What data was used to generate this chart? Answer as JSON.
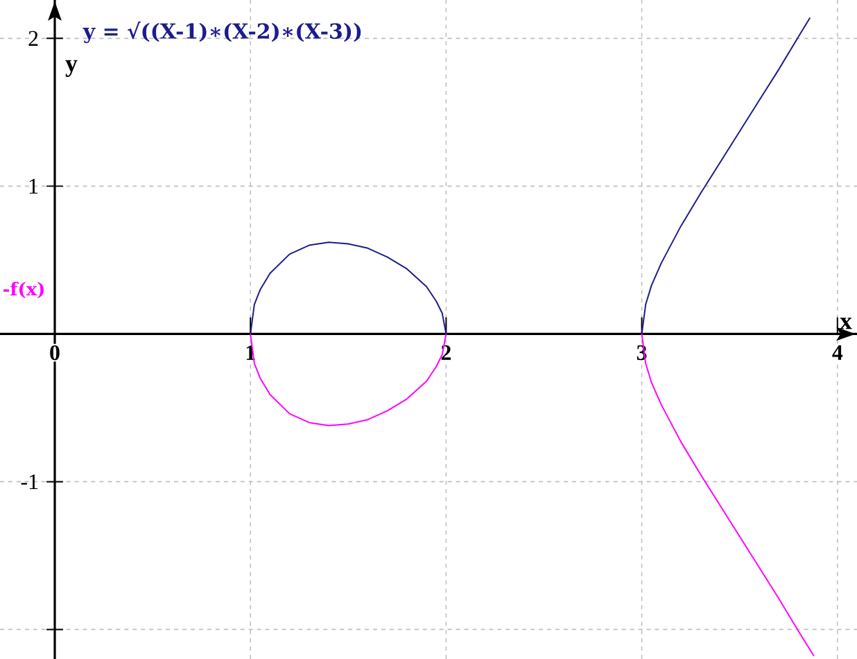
{
  "chart_data": {
    "type": "line",
    "xlabel": "x",
    "ylabel": "y",
    "xlim": [
      -0.28,
      4.1
    ],
    "ylim": [
      -2.2,
      2.26
    ],
    "xticks": [
      0,
      1,
      2,
      3,
      4
    ],
    "yticks": [
      {
        "value": -2,
        "label": null
      },
      -1,
      1,
      2
    ],
    "grid": true,
    "line_style": "solid",
    "marker": "none",
    "series": [
      {
        "name": "y = √((X-1)∗(X-2)∗(X-3))",
        "color": "#1c1c8c",
        "x": [
          1,
          1.02,
          1.05,
          1.1,
          1.2,
          1.3,
          1.4,
          1.5,
          1.6,
          1.7,
          1.8,
          1.9,
          1.95,
          1.98,
          2,
          2.5,
          3,
          3.02,
          3.05,
          3.1,
          3.2,
          3.3,
          3.4,
          3.5,
          3.6,
          3.7,
          3.8,
          3.86
        ],
        "values": [
          0,
          0.2,
          0.3,
          0.41,
          0.54,
          0.6,
          0.62,
          0.61,
          0.58,
          0.52,
          0.44,
          0.32,
          0.22,
          0.14,
          0,
          null,
          0,
          0.2,
          0.33,
          0.48,
          0.73,
          0.95,
          1.16,
          1.37,
          1.58,
          1.79,
          2.01,
          2.14
        ]
      },
      {
        "name": "-f(x)",
        "color": "#ff00ff",
        "x": [
          1,
          1.02,
          1.05,
          1.1,
          1.2,
          1.3,
          1.4,
          1.5,
          1.6,
          1.7,
          1.8,
          1.9,
          1.95,
          1.98,
          2,
          2.5,
          3,
          3.02,
          3.05,
          3.1,
          3.2,
          3.3,
          3.4,
          3.5,
          3.6,
          3.7,
          3.8,
          3.88
        ],
        "values": [
          0,
          -0.2,
          -0.3,
          -0.41,
          -0.54,
          -0.6,
          -0.62,
          -0.61,
          -0.58,
          -0.52,
          -0.44,
          -0.32,
          -0.22,
          -0.14,
          0,
          null,
          0,
          -0.2,
          -0.33,
          -0.48,
          -0.73,
          -0.95,
          -1.16,
          -1.37,
          -1.58,
          -1.79,
          -2.01,
          -2.18
        ]
      }
    ]
  }
}
